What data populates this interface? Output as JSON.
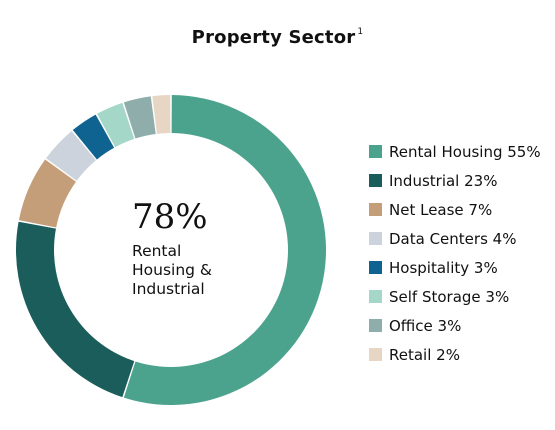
{
  "title": "Property Sector",
  "title_note": "1",
  "center": {
    "value": "78%",
    "caption": "Rental Housing & Industrial"
  },
  "chart_data": {
    "type": "pie",
    "style": "donut",
    "title": "Property Sector",
    "legend_position": "right",
    "categories": [
      "Rental Housing",
      "Industrial",
      "Net Lease",
      "Data Centers",
      "Hospitality",
      "Self Storage",
      "Office",
      "Retail"
    ],
    "values": [
      55,
      23,
      7,
      4,
      3,
      3,
      3,
      2
    ],
    "colors": [
      "#4ca38d",
      "#1a5d5a",
      "#c49e79",
      "#cdd3dc",
      "#0f6391",
      "#a5d7c9",
      "#8fadab",
      "#e8d6c5"
    ],
    "legend": [
      "Rental Housing 55%",
      "Industrial 23%",
      "Net Lease 7%",
      "Data Centers 4%",
      "Hospitality 3%",
      "Self Storage 3%",
      "Office 3%",
      "Retail 2%"
    ]
  }
}
